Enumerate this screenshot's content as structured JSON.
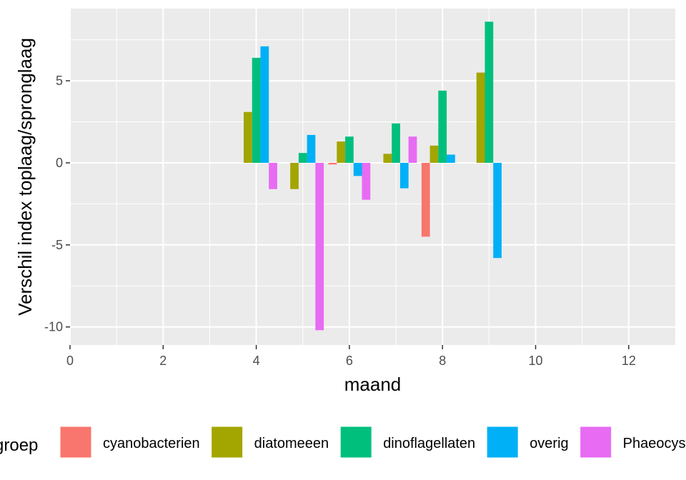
{
  "chart_data": {
    "type": "bar",
    "title": "",
    "xlabel": "maand",
    "ylabel": "Verschil index toplaag/spronglaag",
    "xlim": [
      0,
      13
    ],
    "ylim": [
      -11.1,
      9.4
    ],
    "x_ticks": [
      0,
      2,
      4,
      6,
      8,
      10,
      12
    ],
    "y_ticks": [
      -10,
      -5,
      0,
      5
    ],
    "grid": true,
    "legend_position": "bottom",
    "legend_title": "groep",
    "series": [
      {
        "name": "cyanobacterien",
        "color": "#F8766D",
        "x": [
          6,
          7,
          8
        ],
        "values": [
          -0.1,
          0,
          -4.5
        ]
      },
      {
        "name": "diatomeeen",
        "color": "#A3A500",
        "x": [
          4,
          5,
          6,
          7,
          8,
          9
        ],
        "values": [
          3.1,
          -1.6,
          1.3,
          0.55,
          1.05,
          5.5
        ]
      },
      {
        "name": "dinoflagellaten",
        "color": "#00BF7D",
        "x": [
          4,
          5,
          6,
          7,
          8,
          9
        ],
        "values": [
          6.4,
          0.6,
          1.6,
          2.4,
          4.4,
          8.6
        ]
      },
      {
        "name": "overig",
        "color": "#00B0F6",
        "x": [
          4,
          5,
          6,
          7,
          8,
          9
        ],
        "values": [
          7.1,
          1.7,
          -0.8,
          -1.55,
          0.5,
          -5.8
        ]
      },
      {
        "name": "Phaeocystis",
        "color": "#E76BF3",
        "x": [
          4,
          5,
          6,
          7
        ],
        "values": [
          -1.6,
          -10.2,
          -2.25,
          1.6
        ]
      }
    ]
  }
}
